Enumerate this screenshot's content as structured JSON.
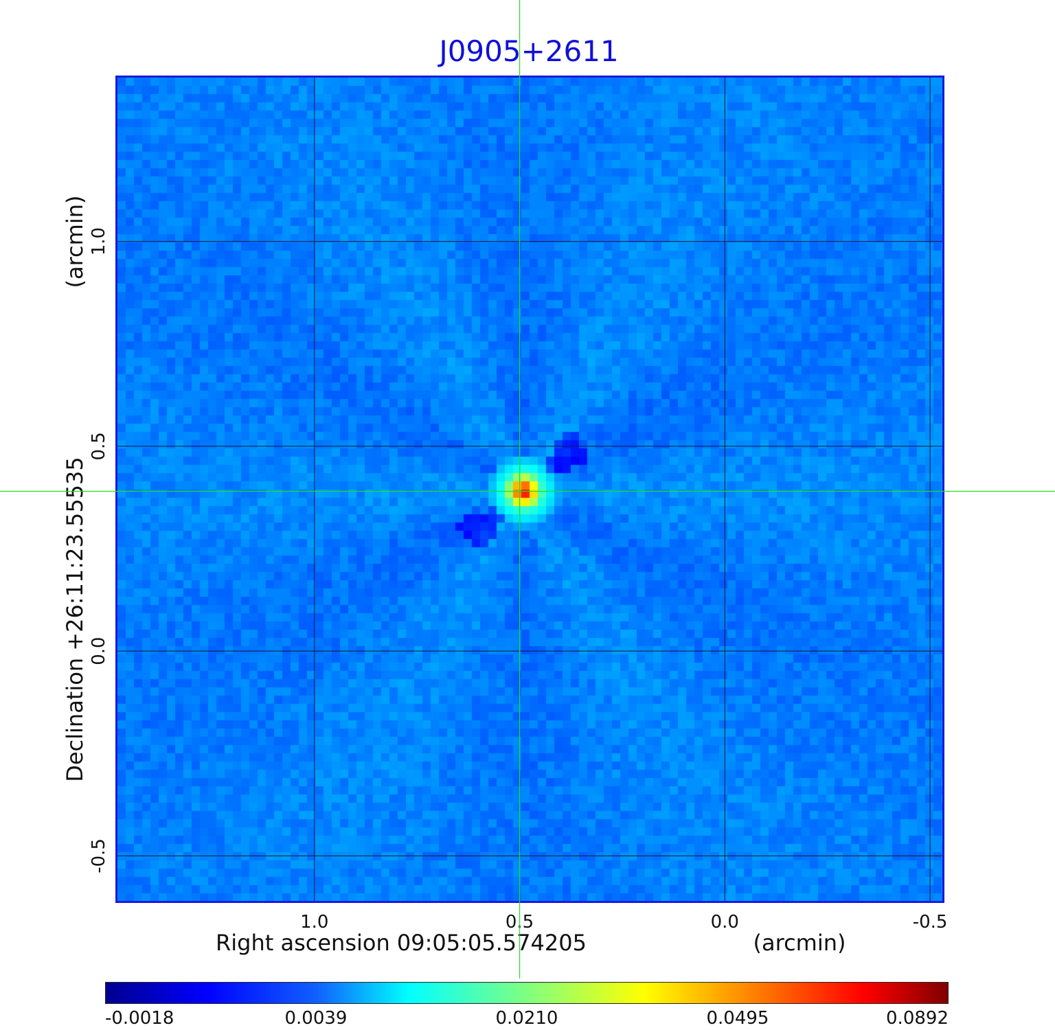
{
  "title": "J0905+2611",
  "chart_data": {
    "type": "heatmap",
    "title": "J0905+2611",
    "xlabel": "Right ascension  09:05:05.574205",
    "xunit": "(arcmin)",
    "ylabel": "Declination  +26:11:23.55535",
    "yunit": "(arcmin)",
    "xlim": [
      1.48,
      -0.53
    ],
    "ylim": [
      -0.61,
      1.4
    ],
    "xticks": [
      1.0,
      0.5,
      0.0,
      -0.5
    ],
    "xtick_labels": [
      "1.0",
      "0.5",
      "0.0",
      "-0.5"
    ],
    "yticks": [
      -0.5,
      0.0,
      0.5,
      1.0
    ],
    "ytick_labels": [
      "-0.5",
      "0.0",
      "0.5",
      "1.0"
    ],
    "grid": true,
    "colormap": "jet",
    "source": {
      "x": 0.49,
      "y": 0.39,
      "peak": 0.0892
    },
    "crosshair": {
      "x": 0.5,
      "y": 0.39,
      "color": "#22dd22"
    },
    "colorbar": {
      "min": -0.0018,
      "max": 0.0892,
      "tick_labels": [
        "-0.0018",
        "0.0039",
        "0.0210",
        "0.0495",
        "0.0892"
      ]
    }
  }
}
